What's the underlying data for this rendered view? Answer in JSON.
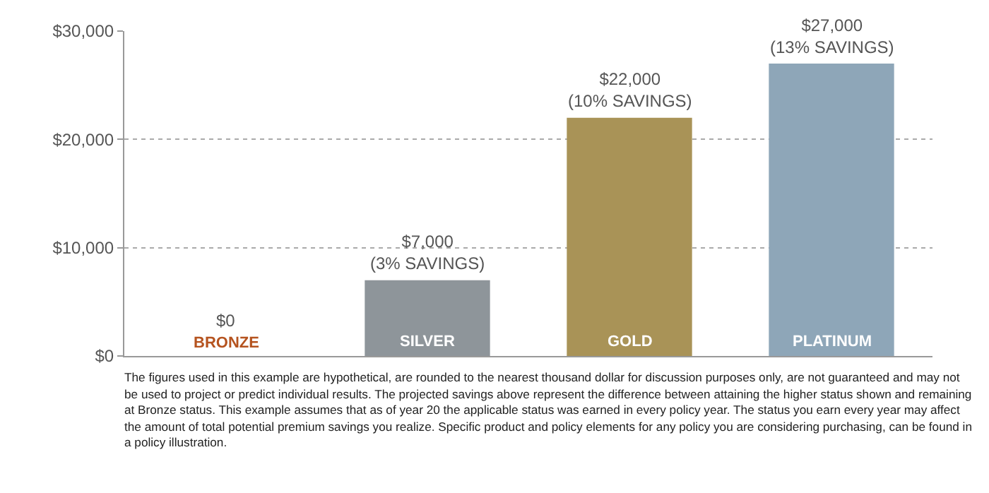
{
  "chart_data": {
    "type": "bar",
    "categories": [
      "BRONZE",
      "SILVER",
      "GOLD",
      "PLATINUM"
    ],
    "values": [
      0,
      7000,
      22000,
      27000
    ],
    "colors": [
      "#b5531f",
      "#8e959a",
      "#a99357",
      "#8ea6b8"
    ],
    "value_labels": [
      "$0",
      "$7,000\n(3% SAVINGS)",
      "$22,000\n(10% SAVINGS)",
      "$27,000\n(13% SAVINGS)"
    ],
    "ylim": [
      0,
      30000
    ],
    "yticks": [
      {
        "value": 0,
        "label": "$0"
      },
      {
        "value": 10000,
        "label": "$10,000"
      },
      {
        "value": 20000,
        "label": "$20,000"
      },
      {
        "value": 30000,
        "label": "$30,000"
      }
    ],
    "grid": "y",
    "annotations": [
      "The figures used in this example are hypothetical, are rounded to the nearest thousand dollar for discussion purposes only, are not guaranteed and may not be used to project or predict individual results. The projected savings above represent the difference between attaining the higher status shown and remaining at Bronze status. This example assumes that as of year 20 the applicable status was earned in every policy year. The status you earn every year may affect the amount of total potential premium savings you realize. Specific product and policy elements for any policy you are considering purchasing, can be found in a policy illustration."
    ]
  }
}
